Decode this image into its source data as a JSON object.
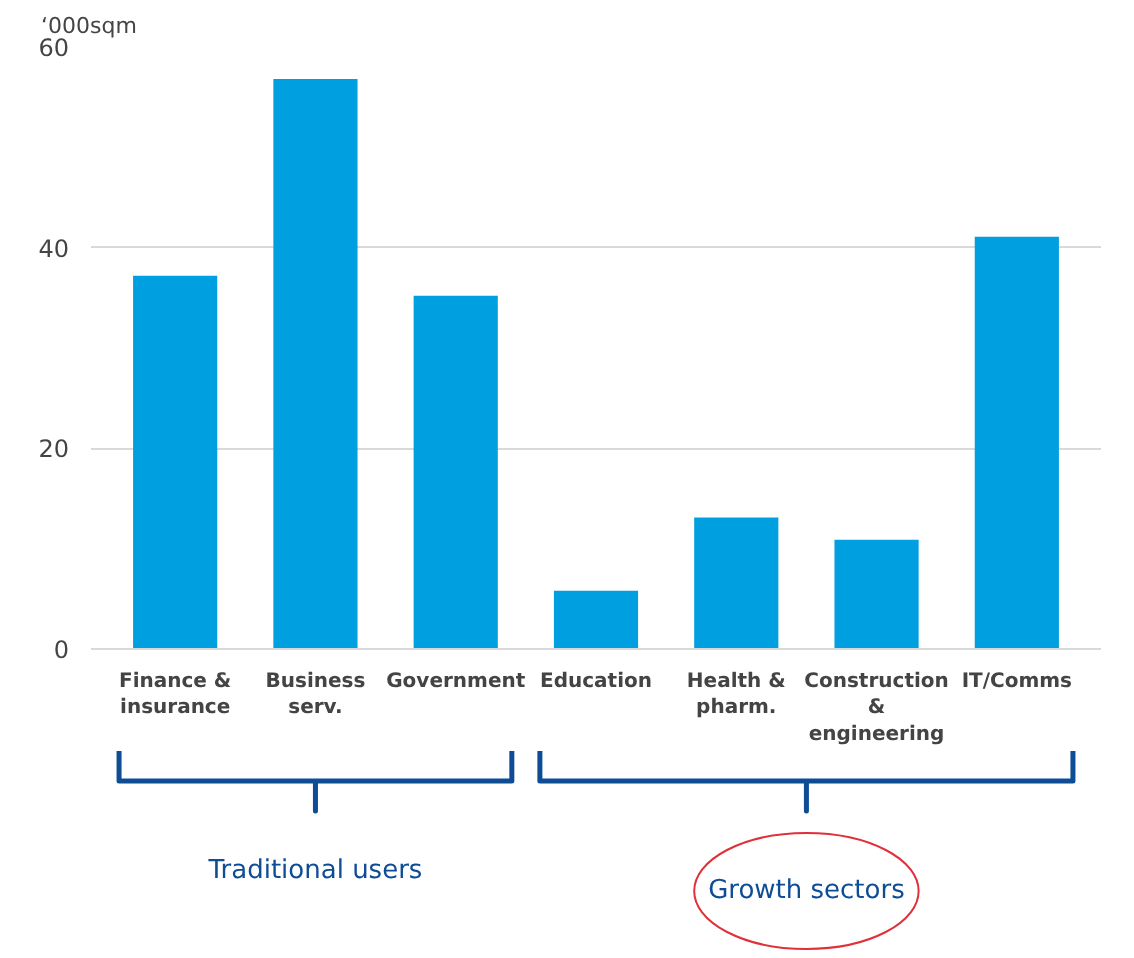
{
  "chart_data": {
    "type": "bar",
    "ylabel": "‘000sqm",
    "categories": [
      "Finance &\ninsurance",
      "Business\nserv.",
      "Government",
      "Education",
      "Health &\npharm.",
      "Construction\n&\nengineering",
      "IT/Comms"
    ],
    "values": [
      37.2,
      56.8,
      35.2,
      5.8,
      13.1,
      10.9,
      41.1
    ],
    "color": "#009fdf",
    "ylim": [
      0,
      60
    ],
    "yticks": [
      0,
      20,
      40,
      60
    ],
    "grid": "y",
    "annotations": [
      "Traditional users",
      "Growth sectors"
    ]
  }
}
